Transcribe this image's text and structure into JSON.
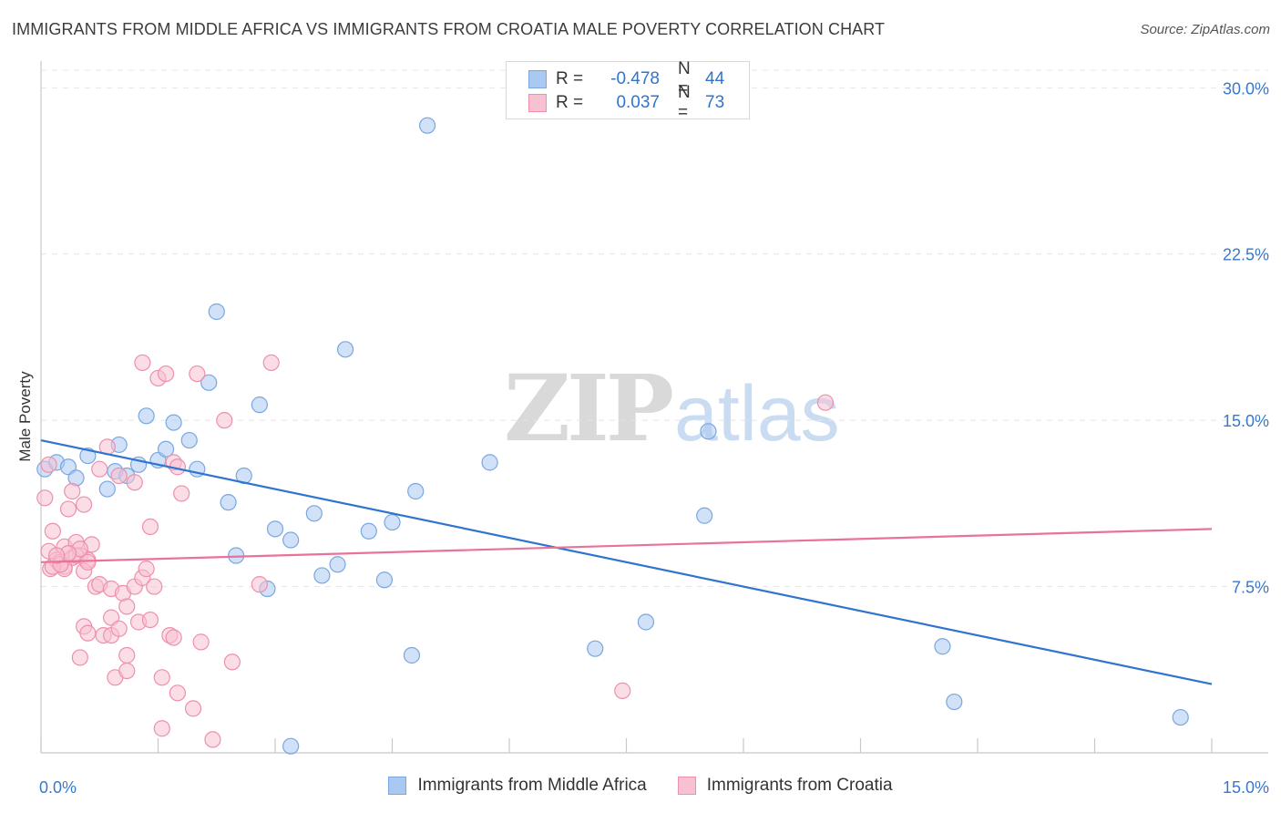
{
  "header": {
    "title": "IMMIGRANTS FROM MIDDLE AFRICA VS IMMIGRANTS FROM CROATIA MALE POVERTY CORRELATION CHART",
    "source": "Source: ZipAtlas.com"
  },
  "watermark": {
    "zip": "ZIP",
    "atlas": "atlas"
  },
  "legend": {
    "rows": [
      {
        "r_label": "R =",
        "r_value": "-0.478",
        "n_label": "N =",
        "n_value": "44",
        "color": "#a9c8f2",
        "border": "#7aa7e0"
      },
      {
        "r_label": "R =",
        "r_value": "0.037",
        "n_label": "N =",
        "n_value": "73",
        "color": "#f7c1d1",
        "border": "#ee8fac"
      }
    ]
  },
  "chart_data": {
    "type": "scatter",
    "title": "IMMIGRANTS FROM MIDDLE AFRICA VS IMMIGRANTS FROM CROATIA MALE POVERTY CORRELATION CHART",
    "xlabel": "",
    "ylabel": "Male Poverty",
    "xlim": [
      0,
      15
    ],
    "ylim": [
      0,
      31
    ],
    "x_tick_labels": [
      "0.0%",
      "15.0%"
    ],
    "y_ticks": [
      7.5,
      15.0,
      22.5,
      30.0
    ],
    "y_tick_labels": [
      "7.5%",
      "15.0%",
      "22.5%",
      "30.0%"
    ],
    "grid": true,
    "series": [
      {
        "name": "Immigrants from Middle Africa",
        "color": "#7aa7e0",
        "fill": "#a9c8f2",
        "line_color": "#2f74d0",
        "trend": [
          [
            0,
            14.1
          ],
          [
            15,
            3.1
          ]
        ],
        "points": [
          [
            0.05,
            12.8
          ],
          [
            0.2,
            13.1
          ],
          [
            0.35,
            12.9
          ],
          [
            0.45,
            12.4
          ],
          [
            0.6,
            13.4
          ],
          [
            0.85,
            11.9
          ],
          [
            0.95,
            12.7
          ],
          [
            1.0,
            13.9
          ],
          [
            1.1,
            12.5
          ],
          [
            1.25,
            13.0
          ],
          [
            1.35,
            15.2
          ],
          [
            1.5,
            13.2
          ],
          [
            1.6,
            13.7
          ],
          [
            1.7,
            14.9
          ],
          [
            1.9,
            14.1
          ],
          [
            2.0,
            12.8
          ],
          [
            2.15,
            16.7
          ],
          [
            2.25,
            19.9
          ],
          [
            2.4,
            11.3
          ],
          [
            2.5,
            8.9
          ],
          [
            2.6,
            12.5
          ],
          [
            2.8,
            15.7
          ],
          [
            2.9,
            7.4
          ],
          [
            3.0,
            10.1
          ],
          [
            3.2,
            9.6
          ],
          [
            3.2,
            0.3
          ],
          [
            3.5,
            10.8
          ],
          [
            3.6,
            8.0
          ],
          [
            3.8,
            8.5
          ],
          [
            3.9,
            18.2
          ],
          [
            4.2,
            10.0
          ],
          [
            4.4,
            7.8
          ],
          [
            4.5,
            10.4
          ],
          [
            4.75,
            4.4
          ],
          [
            4.8,
            11.8
          ],
          [
            4.95,
            28.3
          ],
          [
            5.75,
            13.1
          ],
          [
            7.1,
            4.7
          ],
          [
            7.75,
            5.9
          ],
          [
            8.5,
            10.7
          ],
          [
            8.55,
            14.5
          ],
          [
            11.55,
            4.8
          ],
          [
            11.7,
            2.3
          ],
          [
            14.6,
            1.6
          ]
        ]
      },
      {
        "name": "Immigrants from Croatia",
        "color": "#ee8fac",
        "fill": "#f7c1d1",
        "line_color": "#e8729a",
        "trend": [
          [
            0,
            8.6
          ],
          [
            15,
            10.1
          ]
        ],
        "points": [
          [
            0.05,
            11.5
          ],
          [
            0.1,
            13.0
          ],
          [
            0.1,
            9.1
          ],
          [
            0.12,
            8.3
          ],
          [
            0.15,
            10.0
          ],
          [
            0.2,
            8.7
          ],
          [
            0.25,
            8.6
          ],
          [
            0.3,
            8.4
          ],
          [
            0.3,
            9.3
          ],
          [
            0.35,
            11.0
          ],
          [
            0.4,
            11.8
          ],
          [
            0.45,
            9.5
          ],
          [
            0.5,
            4.3
          ],
          [
            0.5,
            8.9
          ],
          [
            0.55,
            5.7
          ],
          [
            0.55,
            11.2
          ],
          [
            0.6,
            5.4
          ],
          [
            0.65,
            9.4
          ],
          [
            0.7,
            7.5
          ],
          [
            0.75,
            12.8
          ],
          [
            0.75,
            7.6
          ],
          [
            0.8,
            5.3
          ],
          [
            0.85,
            13.8
          ],
          [
            0.9,
            6.1
          ],
          [
            0.9,
            7.4
          ],
          [
            0.9,
            5.3
          ],
          [
            0.95,
            3.4
          ],
          [
            1.0,
            12.5
          ],
          [
            1.0,
            5.6
          ],
          [
            1.05,
            7.2
          ],
          [
            1.1,
            4.4
          ],
          [
            1.1,
            6.6
          ],
          [
            1.1,
            3.7
          ],
          [
            1.2,
            12.2
          ],
          [
            1.2,
            7.5
          ],
          [
            1.25,
            5.9
          ],
          [
            1.3,
            7.9
          ],
          [
            1.3,
            17.6
          ],
          [
            1.35,
            8.3
          ],
          [
            1.4,
            10.2
          ],
          [
            1.4,
            6.0
          ],
          [
            1.45,
            7.5
          ],
          [
            1.5,
            16.9
          ],
          [
            1.55,
            3.4
          ],
          [
            1.55,
            1.1
          ],
          [
            1.6,
            17.1
          ],
          [
            1.65,
            5.3
          ],
          [
            1.7,
            13.1
          ],
          [
            1.7,
            5.2
          ],
          [
            1.75,
            12.9
          ],
          [
            1.75,
            2.7
          ],
          [
            1.8,
            11.7
          ],
          [
            1.95,
            2.0
          ],
          [
            2.0,
            17.1
          ],
          [
            2.05,
            5.0
          ],
          [
            2.2,
            0.6
          ],
          [
            2.35,
            15.0
          ],
          [
            2.45,
            4.1
          ],
          [
            2.8,
            7.6
          ],
          [
            2.95,
            17.6
          ],
          [
            7.45,
            2.8
          ],
          [
            10.05,
            15.8
          ],
          [
            0.6,
            8.7
          ],
          [
            0.4,
            8.8
          ],
          [
            0.55,
            8.2
          ],
          [
            0.3,
            8.3
          ],
          [
            0.15,
            8.4
          ],
          [
            0.25,
            8.5
          ],
          [
            0.45,
            8.9
          ],
          [
            0.5,
            9.2
          ],
          [
            0.35,
            9.0
          ],
          [
            0.2,
            8.9
          ],
          [
            0.6,
            8.6
          ]
        ]
      }
    ]
  }
}
